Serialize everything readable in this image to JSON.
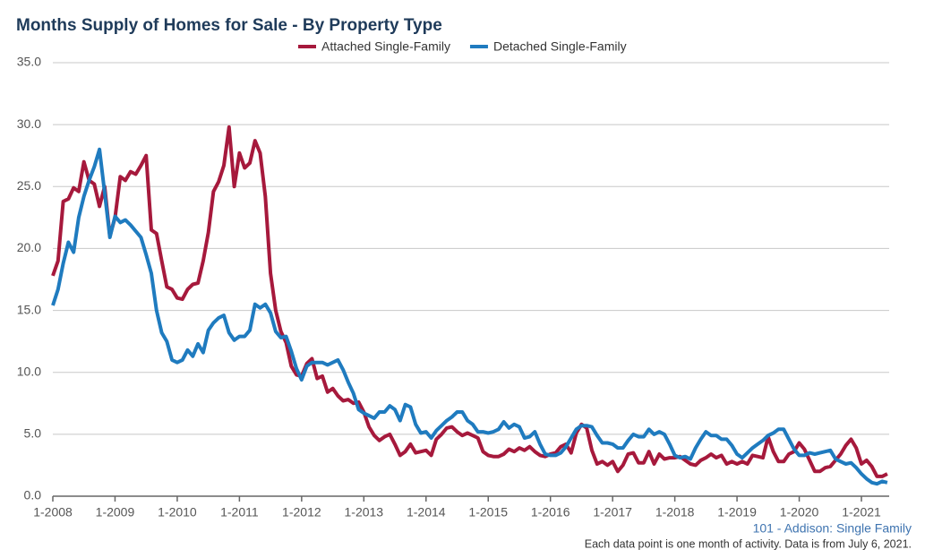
{
  "chart_data": {
    "type": "line",
    "title": "Months Supply of Homes for Sale - By Property Type",
    "subtitle": "101 - Addison: Single Family",
    "note": "Each data point is one month of activity. Data is from July 6, 2021.",
    "categories": [
      "1-2008",
      null,
      null,
      null,
      null,
      null,
      null,
      null,
      null,
      null,
      null,
      null,
      "1-2009",
      null,
      null,
      null,
      null,
      null,
      null,
      null,
      null,
      null,
      null,
      null,
      "1-2010",
      null,
      null,
      null,
      null,
      null,
      null,
      null,
      null,
      null,
      null,
      null,
      "1-2011",
      null,
      null,
      null,
      null,
      null,
      null,
      null,
      null,
      null,
      null,
      null,
      "1-2012",
      null,
      null,
      null,
      null,
      null,
      null,
      null,
      null,
      null,
      null,
      null,
      "1-2013",
      null,
      null,
      null,
      null,
      null,
      null,
      null,
      null,
      null,
      null,
      null,
      "1-2014",
      null,
      null,
      null,
      null,
      null,
      null,
      null,
      null,
      null,
      null,
      null,
      "1-2015",
      null,
      null,
      null,
      null,
      null,
      null,
      null,
      null,
      null,
      null,
      null,
      "1-2016",
      null,
      null,
      null,
      null,
      null,
      null,
      null,
      null,
      null,
      null,
      null,
      "1-2017",
      null,
      null,
      null,
      null,
      null,
      null,
      null,
      null,
      null,
      null,
      null,
      "1-2018",
      null,
      null,
      null,
      null,
      null,
      null,
      null,
      null,
      null,
      null,
      null,
      "1-2019",
      null,
      null,
      null,
      null,
      null,
      null,
      null,
      null,
      null,
      null,
      null,
      "1-2020",
      null,
      null,
      null,
      null,
      null,
      null,
      null,
      null,
      null,
      null,
      null,
      "1-2021",
      null,
      null,
      null,
      null,
      null
    ],
    "series": [
      {
        "name": "Attached Single-Family",
        "color": "#a6193c",
        "values": [
          17.8,
          19,
          23.8,
          24,
          24.9,
          24.6,
          27,
          25.5,
          25.2,
          23.4,
          25,
          21,
          22.5,
          25.8,
          25.5,
          26.2,
          26,
          26.7,
          27.5,
          21.5,
          21.2,
          19,
          16.9,
          16.7,
          16,
          15.9,
          16.7,
          17.1,
          17.2,
          19,
          21.3,
          24.6,
          25.4,
          26.7,
          29.8,
          25,
          27.7,
          26.5,
          26.9,
          28.7,
          27.7,
          24.2,
          18,
          15,
          13.3,
          12.4,
          10.5,
          9.8,
          9.7,
          10.7,
          11.1,
          9.5,
          9.7,
          8.4,
          8.7,
          8.1,
          7.7,
          7.8,
          7.5,
          7.6,
          6.8,
          5.6,
          4.9,
          4.5,
          4.8,
          5,
          4.2,
          3.3,
          3.6,
          4.2,
          3.5,
          3.6,
          3.7,
          3.3,
          4.6,
          5,
          5.5,
          5.6,
          5.2,
          4.9,
          5.1,
          4.9,
          4.7,
          3.6,
          3.3,
          3.2,
          3.2,
          3.4,
          3.8,
          3.6,
          3.9,
          3.7,
          4,
          3.6,
          3.3,
          3.2,
          3.4,
          3.5,
          4,
          4.2,
          3.5,
          5.1,
          5.8,
          5.5,
          3.7,
          2.6,
          2.8,
          2.5,
          2.8,
          2,
          2.5,
          3.4,
          3.5,
          2.7,
          2.7,
          3.6,
          2.6,
          3.4,
          3,
          3.1,
          3.1,
          3.2,
          2.9,
          2.6,
          2.5,
          2.9,
          3.1,
          3.4,
          3.1,
          3.3,
          2.6,
          2.8,
          2.6,
          2.8,
          2.6,
          3.3,
          3.2,
          3.1,
          4.8,
          3.6,
          2.8,
          2.8,
          3.4,
          3.6,
          4.3,
          3.8,
          2.9,
          2,
          2,
          2.3,
          2.4,
          2.9,
          3.4,
          4.1,
          4.6,
          3.9,
          2.6,
          2.9,
          2.4,
          1.6,
          1.6,
          1.8
        ]
      },
      {
        "name": "Detached Single-Family",
        "color": "#1f7bbf",
        "values": [
          15.4,
          16.7,
          18.8,
          20.5,
          19.7,
          22.5,
          24.2,
          25.5,
          26.6,
          28,
          24.5,
          20.9,
          22.6,
          22.1,
          22.3,
          21.9,
          21.4,
          20.9,
          19.5,
          18,
          15,
          13.2,
          12.5,
          11,
          10.8,
          11,
          11.8,
          11.3,
          12.3,
          11.6,
          13.4,
          14,
          14.4,
          14.6,
          13.2,
          12.6,
          12.9,
          12.9,
          13.4,
          15.5,
          15.2,
          15.5,
          14.8,
          13.3,
          12.8,
          12.9,
          11.7,
          10.3,
          9.4,
          10.5,
          10.8,
          10.8,
          10.8,
          10.6,
          10.8,
          11,
          10.2,
          9.2,
          8.3,
          7,
          6.7,
          6.5,
          6.3,
          6.8,
          6.8,
          7.3,
          7,
          6.1,
          7.4,
          7.2,
          5.8,
          5.1,
          5.2,
          4.7,
          5.3,
          5.7,
          6.1,
          6.4,
          6.8,
          6.8,
          6.1,
          5.8,
          5.2,
          5.2,
          5.1,
          5.2,
          5.4,
          6,
          5.5,
          5.8,
          5.6,
          4.7,
          4.8,
          5.2,
          4.2,
          3.4,
          3.3,
          3.3,
          3.5,
          4,
          4.7,
          5.4,
          5.7,
          5.7,
          5.6,
          4.9,
          4.3,
          4.3,
          4.2,
          3.9,
          3.9,
          4.5,
          5,
          4.8,
          4.8,
          5.4,
          5,
          5.2,
          5,
          4.2,
          3.3,
          3.1,
          3.2,
          3,
          3.9,
          4.6,
          5.2,
          4.9,
          4.9,
          4.6,
          4.6,
          4.1,
          3.4,
          3.1,
          3.5,
          3.9,
          4.2,
          4.5,
          4.9,
          5.1,
          5.4,
          5.4,
          4.6,
          3.8,
          3.3,
          3.3,
          3.5,
          3.4,
          3.5,
          3.6,
          3.7,
          3,
          2.8,
          2.6,
          2.7,
          2.3,
          1.8,
          1.4,
          1.1,
          1,
          1.2,
          1.1
        ]
      }
    ],
    "ylim": [
      0,
      35
    ],
    "yticks": [
      {
        "value": 0,
        "label": "0.0"
      },
      {
        "value": 5,
        "label": "5.0"
      },
      {
        "value": 10,
        "label": "10.0"
      },
      {
        "value": 15,
        "label": "15.0"
      },
      {
        "value": 20,
        "label": "20.0"
      },
      {
        "value": 25,
        "label": "25.0"
      },
      {
        "value": 30,
        "label": "30.0"
      },
      {
        "value": 35,
        "label": "35.0"
      }
    ],
    "grid": true
  }
}
